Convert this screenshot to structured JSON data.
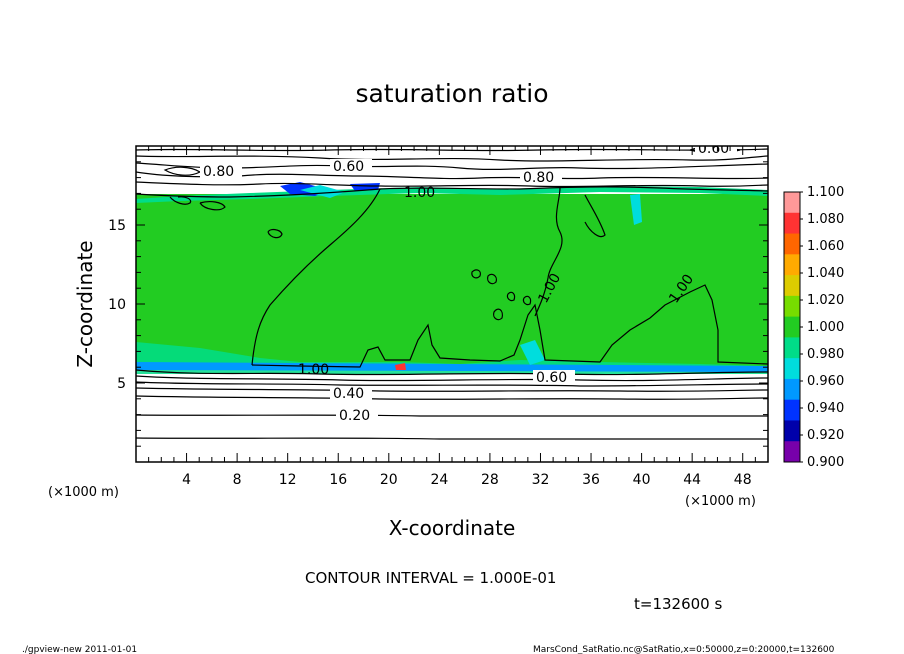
{
  "chart_data": {
    "type": "heatmap",
    "title": "saturation ratio",
    "xlabel": "X-coordinate",
    "ylabel": "Z-coordinate",
    "x_unit": "(×1000 m)",
    "y_unit": "(×1000 m)",
    "xlim": [
      0,
      50
    ],
    "ylim": [
      0,
      20
    ],
    "x_ticks": [
      4,
      8,
      12,
      16,
      20,
      24,
      28,
      32,
      36,
      40,
      44,
      48
    ],
    "y_ticks": [
      5,
      10,
      15
    ],
    "colorbar": {
      "levels": [
        "1.100",
        "1.080",
        "1.060",
        "1.040",
        "1.020",
        "1.000",
        "0.980",
        "0.960",
        "0.940",
        "0.920",
        "0.900"
      ],
      "colors": [
        "#ff9999",
        "#ff3333",
        "#ff6600",
        "#ffaa00",
        "#ddcc00",
        "#77dd00",
        "#22cc22",
        "#00dd88",
        "#00dddd",
        "#0099ff",
        "#0033ff",
        "#0000aa",
        "#7700aa"
      ]
    },
    "field_levels": {
      "saturated_region_value": 1.0,
      "saturated_region_z_range": [
        6,
        17
      ],
      "upper_layer_value": 0.6,
      "lower_layer_values": [
        0.8,
        0.6,
        0.4,
        0.2
      ]
    },
    "contour_labels": [
      "0.60",
      "0.60",
      "0.80",
      "0.80",
      "1.00",
      "1.00",
      "1.00",
      "1.00",
      "0.60",
      "0.40",
      "0.20"
    ],
    "annotations": {
      "contour_interval": "CONTOUR INTERVAL = 1.000E-01",
      "time": "t=132600 s"
    }
  },
  "footer": {
    "left": "./gpview-new   2011-01-01",
    "right": "MarsCond_SatRatio.nc@SatRatio,x=0:50000,z=0:20000,t=132600"
  }
}
